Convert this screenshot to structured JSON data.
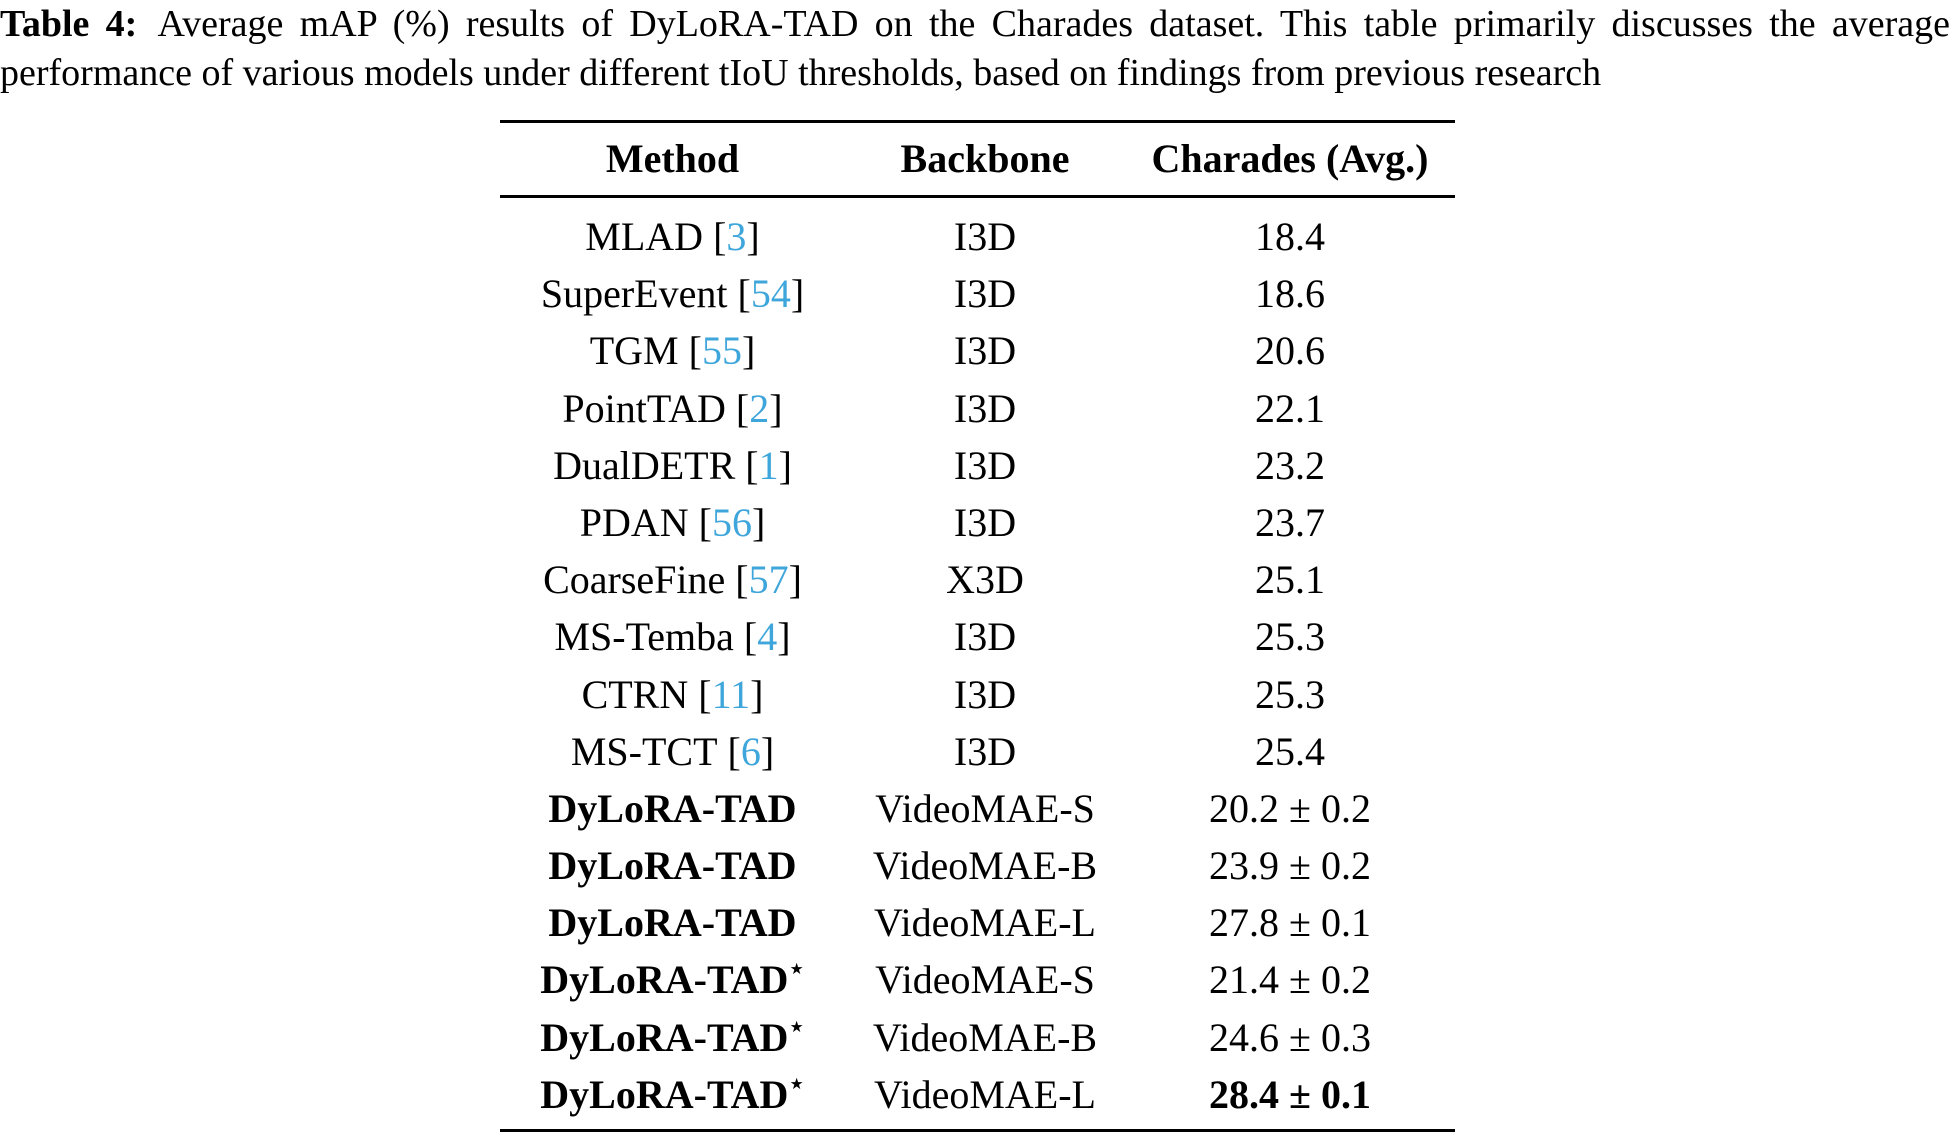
{
  "caption": {
    "label": "Table 4:",
    "line1_rest": " Average mAP (%) results of DyLoRA-TAD on the Charades dataset. This table primarily discusses the average",
    "line2": "performance of various models under different tIoU thresholds, based on findings from previous research"
  },
  "colors": {
    "citation_blue": "#3FA6DB",
    "text_black": "#000000"
  },
  "table": {
    "columns": [
      "Method",
      "Backbone",
      "Charades (Avg.)"
    ],
    "star_glyph": "⋆",
    "rows": [
      {
        "method": "MLAD",
        "cite": "3",
        "backbone": "I3D",
        "value": "18.4",
        "bold": false,
        "star": false,
        "bold_value": false
      },
      {
        "method": "SuperEvent",
        "cite": "54",
        "backbone": "I3D",
        "value": "18.6",
        "bold": false,
        "star": false,
        "bold_value": false
      },
      {
        "method": "TGM",
        "cite": "55",
        "backbone": "I3D",
        "value": "20.6",
        "bold": false,
        "star": false,
        "bold_value": false
      },
      {
        "method": "PointTAD",
        "cite": "2",
        "backbone": "I3D",
        "value": "22.1",
        "bold": false,
        "star": false,
        "bold_value": false
      },
      {
        "method": "DualDETR",
        "cite": "1",
        "backbone": "I3D",
        "value": "23.2",
        "bold": false,
        "star": false,
        "bold_value": false
      },
      {
        "method": "PDAN",
        "cite": "56",
        "backbone": "I3D",
        "value": "23.7",
        "bold": false,
        "star": false,
        "bold_value": false
      },
      {
        "method": "CoarseFine",
        "cite": "57",
        "backbone": "X3D",
        "value": "25.1",
        "bold": false,
        "star": false,
        "bold_value": false
      },
      {
        "method": "MS-Temba",
        "cite": "4",
        "backbone": "I3D",
        "value": "25.3",
        "bold": false,
        "star": false,
        "bold_value": false
      },
      {
        "method": "CTRN",
        "cite": "11",
        "backbone": "I3D",
        "value": "25.3",
        "bold": false,
        "star": false,
        "bold_value": false
      },
      {
        "method": "MS-TCT",
        "cite": "6",
        "backbone": "I3D",
        "value": "25.4",
        "bold": false,
        "star": false,
        "bold_value": false
      },
      {
        "method": "DyLoRA-TAD",
        "cite": "",
        "backbone": "VideoMAE-S",
        "value": "20.2 ± 0.2",
        "bold": true,
        "star": false,
        "bold_value": false
      },
      {
        "method": "DyLoRA-TAD",
        "cite": "",
        "backbone": "VideoMAE-B",
        "value": "23.9 ± 0.2",
        "bold": true,
        "star": false,
        "bold_value": false
      },
      {
        "method": "DyLoRA-TAD",
        "cite": "",
        "backbone": "VideoMAE-L",
        "value": "27.8 ± 0.1",
        "bold": true,
        "star": false,
        "bold_value": false
      },
      {
        "method": "DyLoRA-TAD",
        "cite": "",
        "backbone": "VideoMAE-S",
        "value": "21.4 ± 0.2",
        "bold": true,
        "star": true,
        "bold_value": false
      },
      {
        "method": "DyLoRA-TAD",
        "cite": "",
        "backbone": "VideoMAE-B",
        "value": "24.6 ± 0.3",
        "bold": true,
        "star": true,
        "bold_value": false
      },
      {
        "method": "DyLoRA-TAD",
        "cite": "",
        "backbone": "VideoMAE-L",
        "value": "28.4 ± 0.1",
        "bold": true,
        "star": true,
        "bold_value": true
      }
    ]
  }
}
